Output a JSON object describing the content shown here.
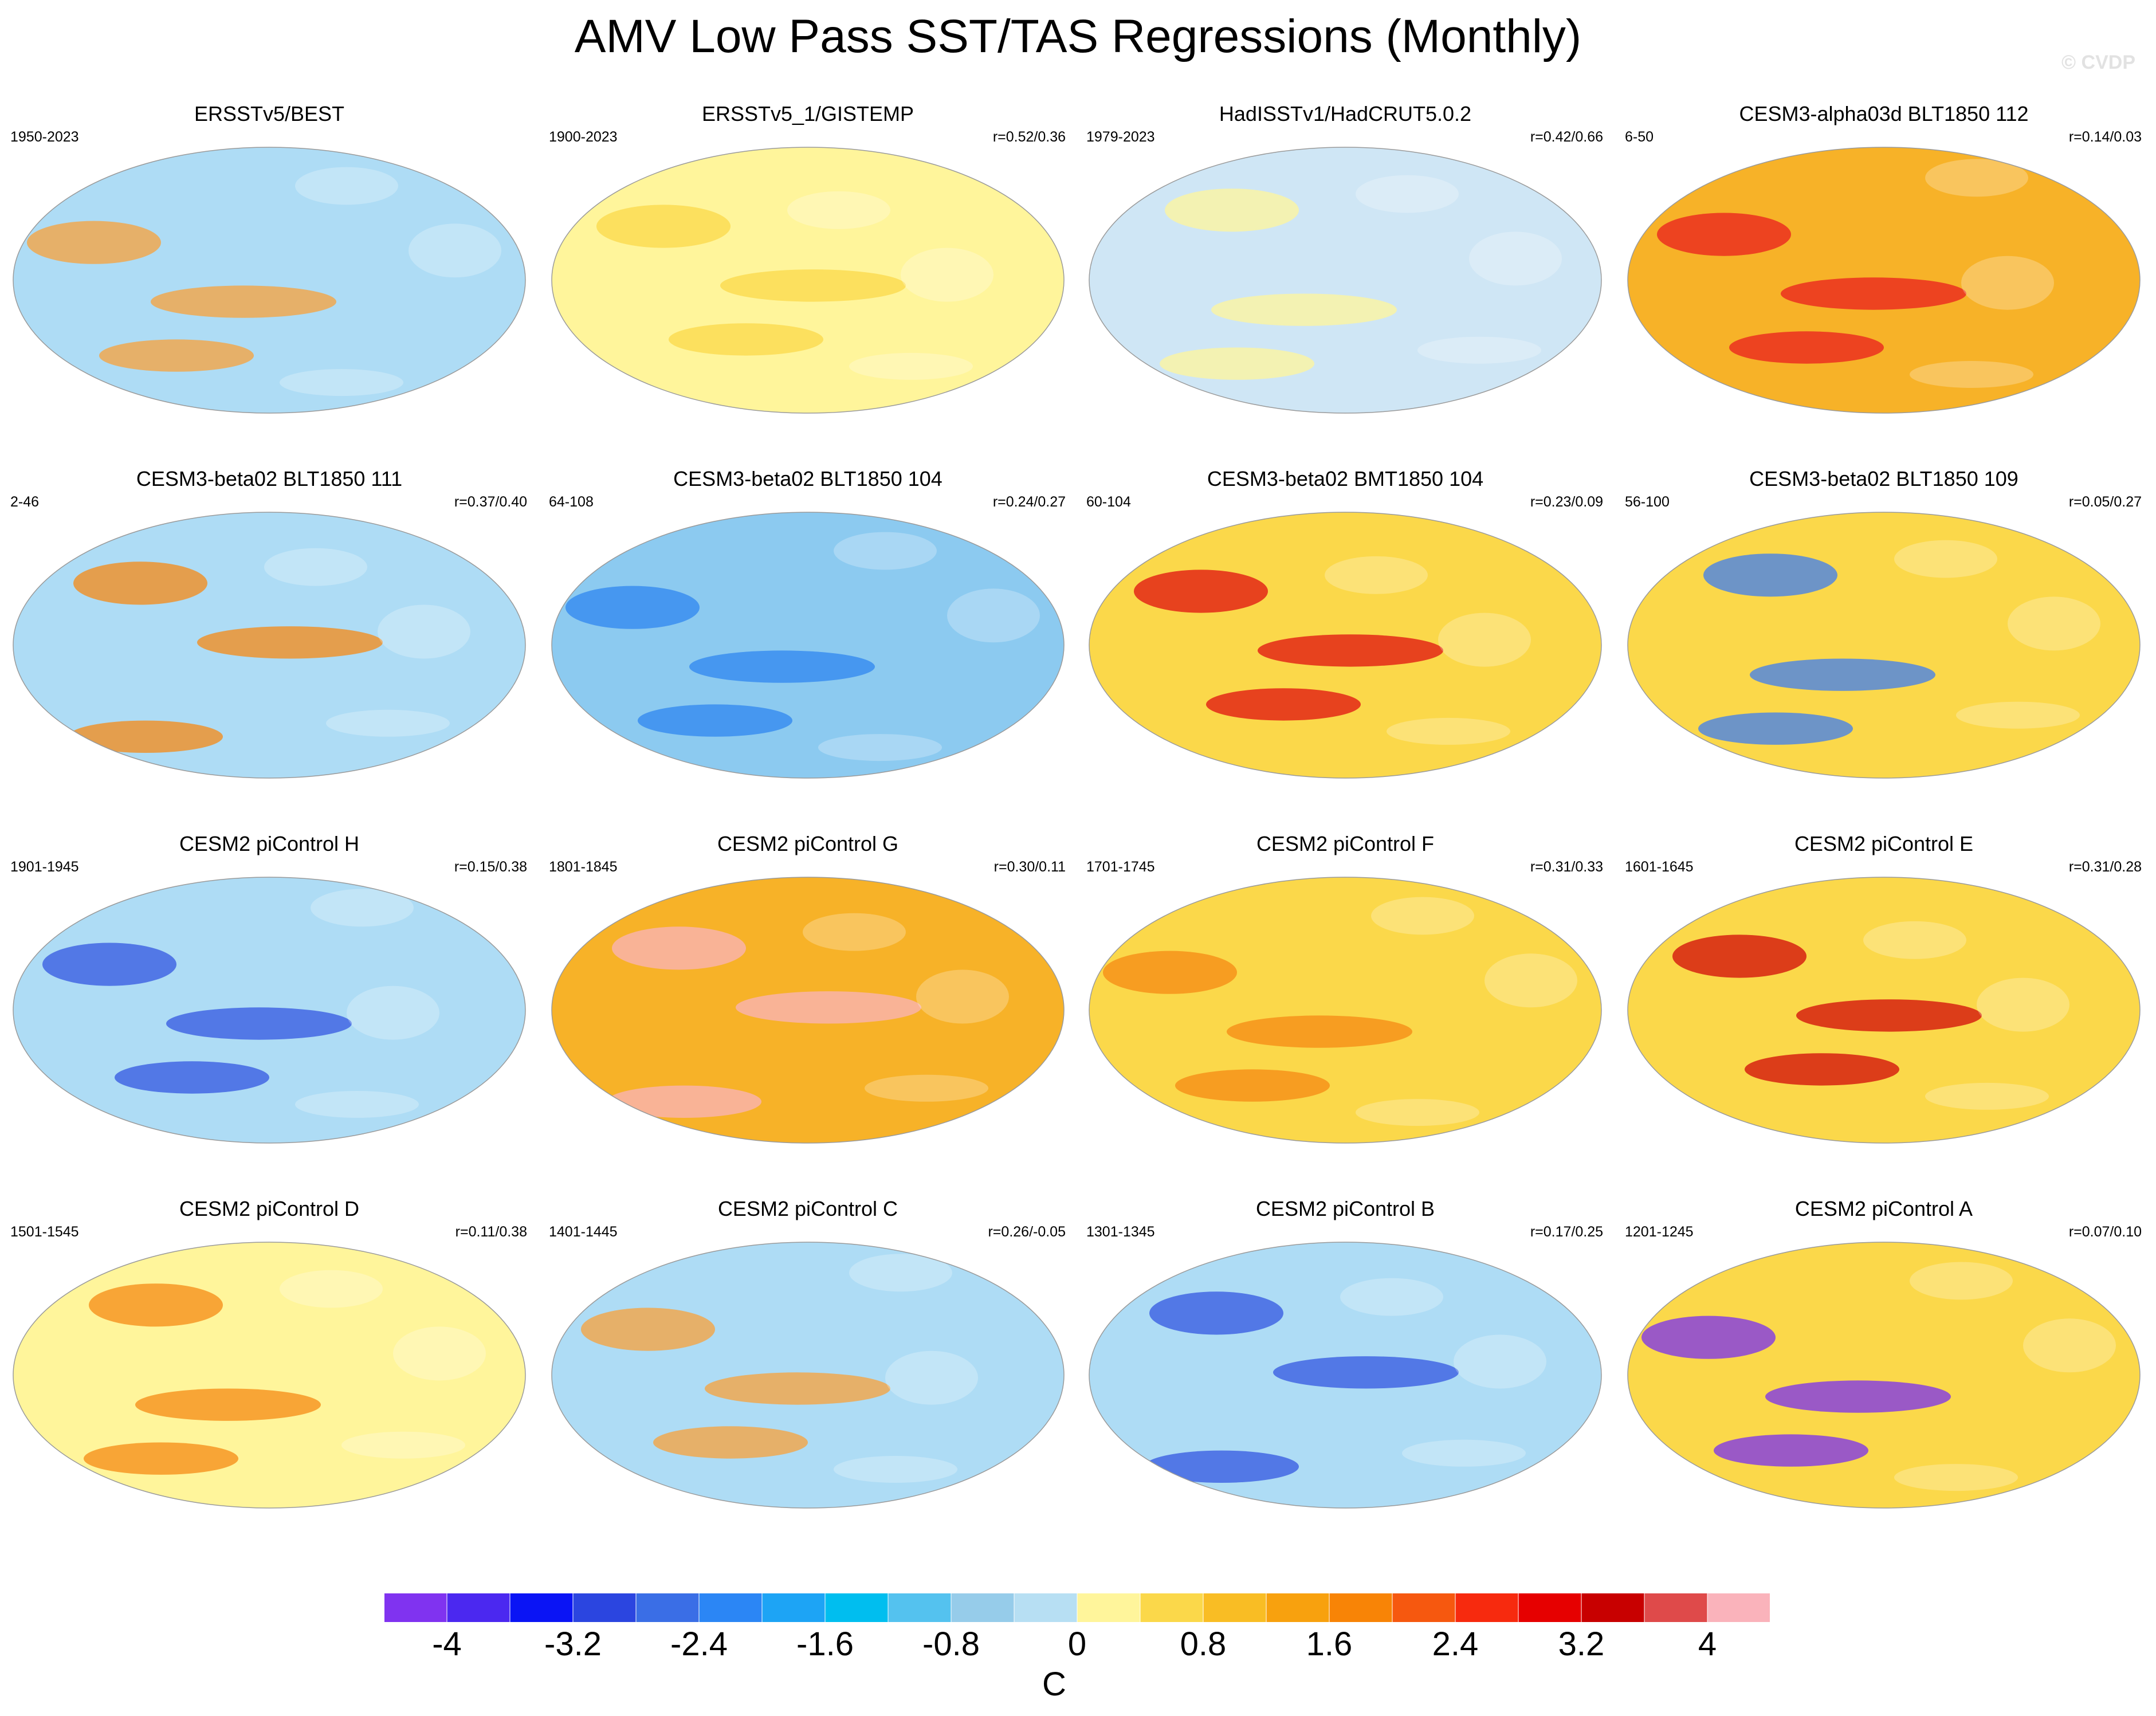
{
  "title": "AMV Low Pass SST/TAS Regressions (Monthly)",
  "watermark": "© CVDP",
  "chart_data": {
    "type": "heatmap",
    "title": "AMV Low Pass SST/TAS Regressions (Monthly)",
    "projection": "global map",
    "panels": [
      {
        "title": "ERSSTv5/BEST",
        "years": "1950-2023",
        "r": "",
        "fill": "#aedcf5",
        "accent": "#f8a13a"
      },
      {
        "title": "ERSSTv5_1/GISTEMP",
        "years": "1900-2023",
        "r": "r=0.52/0.36",
        "fill": "#fff59b",
        "accent": "#fbd84a"
      },
      {
        "title": "HadISSTv1/HadCRUT5.0.2",
        "years": "1979-2023",
        "r": "r=0.42/0.66",
        "fill": "#cfe6f5",
        "accent": "#fff59b"
      },
      {
        "title": "CESM3-alpha03d BLT1850 112",
        "years": "6-50",
        "r": "r=0.14/0.03",
        "fill": "#f7b228",
        "accent": "#ea1e1e"
      },
      {
        "title": "CESM3-beta02 BLT1850 111",
        "years": "2-46",
        "r": "r=0.37/0.40",
        "fill": "#aedcf5",
        "accent": "#f58a14"
      },
      {
        "title": "CESM3-beta02 BLT1850 104",
        "years": "64-108",
        "r": "r=0.24/0.27",
        "fill": "#8ccaf0",
        "accent": "#2f86f0"
      },
      {
        "title": "CESM3-beta02 BMT1850 104",
        "years": "60-104",
        "r": "r=0.23/0.09",
        "fill": "#fbd84a",
        "accent": "#e01010"
      },
      {
        "title": "CESM3-beta02 BLT1850 109",
        "years": "56-100",
        "r": "r=0.05/0.27",
        "fill": "#fbd84a",
        "accent": "#3e7ef2"
      },
      {
        "title": "CESM2 piControl H",
        "years": "1901-1945",
        "r": "r=0.15/0.38",
        "fill": "#aedcf5",
        "accent": "#3357e0"
      },
      {
        "title": "CESM2 piControl G",
        "years": "1801-1845",
        "r": "r=0.30/0.11",
        "fill": "#f7b228",
        "accent": "#fab3bb"
      },
      {
        "title": "CESM2 piControl F",
        "years": "1701-1745",
        "r": "r=0.31/0.33",
        "fill": "#fbd84a",
        "accent": "#f58a14"
      },
      {
        "title": "CESM2 piControl E",
        "years": "1601-1645",
        "r": "r=0.31/0.28",
        "fill": "#fbd84a",
        "accent": "#d20a0a"
      },
      {
        "title": "CESM2 piControl D",
        "years": "1501-1545",
        "r": "r=0.11/0.38",
        "fill": "#fff59b",
        "accent": "#f58a14"
      },
      {
        "title": "CESM2 piControl C",
        "years": "1401-1445",
        "r": "r=0.26/-0.05",
        "fill": "#aedcf5",
        "accent": "#f8a13a"
      },
      {
        "title": "CESM2 piControl B",
        "years": "1301-1345",
        "r": "r=0.17/0.25",
        "fill": "#aedcf5",
        "accent": "#3357e0"
      },
      {
        "title": "CESM2 piControl A",
        "years": "1201-1245",
        "r": "r=0.07/0.10",
        "fill": "#fbd84a",
        "accent": "#7a2ff0"
      }
    ],
    "colorbar": {
      "levels": [
        -4.4,
        -4,
        -3.6,
        -3.2,
        -2.8,
        -2.4,
        -2,
        -1.6,
        -1.2,
        -0.8,
        -0.4,
        0,
        0.4,
        0.8,
        1.2,
        1.6,
        2,
        2.4,
        2.8,
        3.2,
        3.6,
        4,
        4.4
      ],
      "colors": [
        "#8033f0",
        "#4b28f0",
        "#0a14f5",
        "#2b45e0",
        "#3a6ee6",
        "#2b86f5",
        "#1da4f5",
        "#00beef",
        "#54c2ef",
        "#96ccea",
        "#b7dff3",
        "#fff59b",
        "#fbd84a",
        "#f9bd24",
        "#f8a10e",
        "#f88406",
        "#f6580f",
        "#f72a0e",
        "#e60000",
        "#c80000",
        "#df4a4a",
        "#fab3bb"
      ],
      "tick_values": [
        -4,
        -3.2,
        -2.4,
        -1.6,
        -0.8,
        0,
        0.8,
        1.6,
        2.4,
        3.2,
        4
      ],
      "tick_labels": [
        "-4",
        "-3.2",
        "-2.4",
        "-1.6",
        "-0.8",
        "0",
        "0.8",
        "1.6",
        "2.4",
        "3.2",
        "4"
      ],
      "units": "C"
    }
  }
}
